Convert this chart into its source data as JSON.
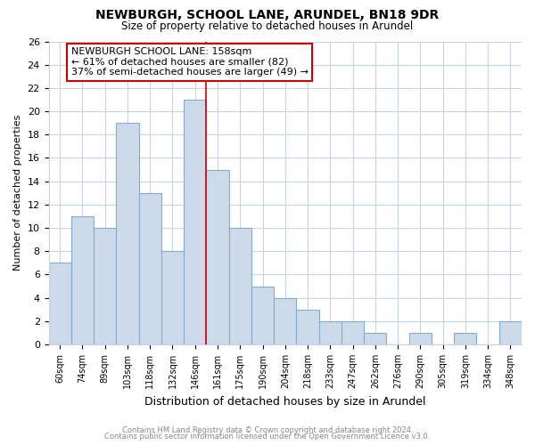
{
  "title": "NEWBURGH, SCHOOL LANE, ARUNDEL, BN18 9DR",
  "subtitle": "Size of property relative to detached houses in Arundel",
  "xlabel": "Distribution of detached houses by size in Arundel",
  "ylabel": "Number of detached properties",
  "bar_color": "#ccdaea",
  "bar_edgecolor": "#88aacc",
  "categories": [
    "60sqm",
    "74sqm",
    "89sqm",
    "103sqm",
    "118sqm",
    "132sqm",
    "146sqm",
    "161sqm",
    "175sqm",
    "190sqm",
    "204sqm",
    "218sqm",
    "233sqm",
    "247sqm",
    "262sqm",
    "276sqm",
    "290sqm",
    "305sqm",
    "319sqm",
    "334sqm",
    "348sqm"
  ],
  "values": [
    7,
    11,
    10,
    19,
    13,
    8,
    21,
    15,
    10,
    5,
    4,
    3,
    2,
    2,
    1,
    0,
    1,
    0,
    1,
    0,
    2
  ],
  "ylim": [
    0,
    26
  ],
  "yticks": [
    0,
    2,
    4,
    6,
    8,
    10,
    12,
    14,
    16,
    18,
    20,
    22,
    24,
    26
  ],
  "marker_index": 6,
  "marker_color": "#cc0000",
  "marker_label": "NEWBURGH SCHOOL LANE: 158sqm",
  "annotation_line1": "← 61% of detached houses are smaller (82)",
  "annotation_line2": "37% of semi-detached houses are larger (49) →",
  "footer_line1": "Contains HM Land Registry data © Crown copyright and database right 2024.",
  "footer_line2": "Contains public sector information licensed under the Open Government Licence v3.0.",
  "bg_color": "#ffffff",
  "grid_color": "#c8d4e0",
  "annotation_box_edgecolor": "#cc0000",
  "grid_linewidth": 0.8
}
